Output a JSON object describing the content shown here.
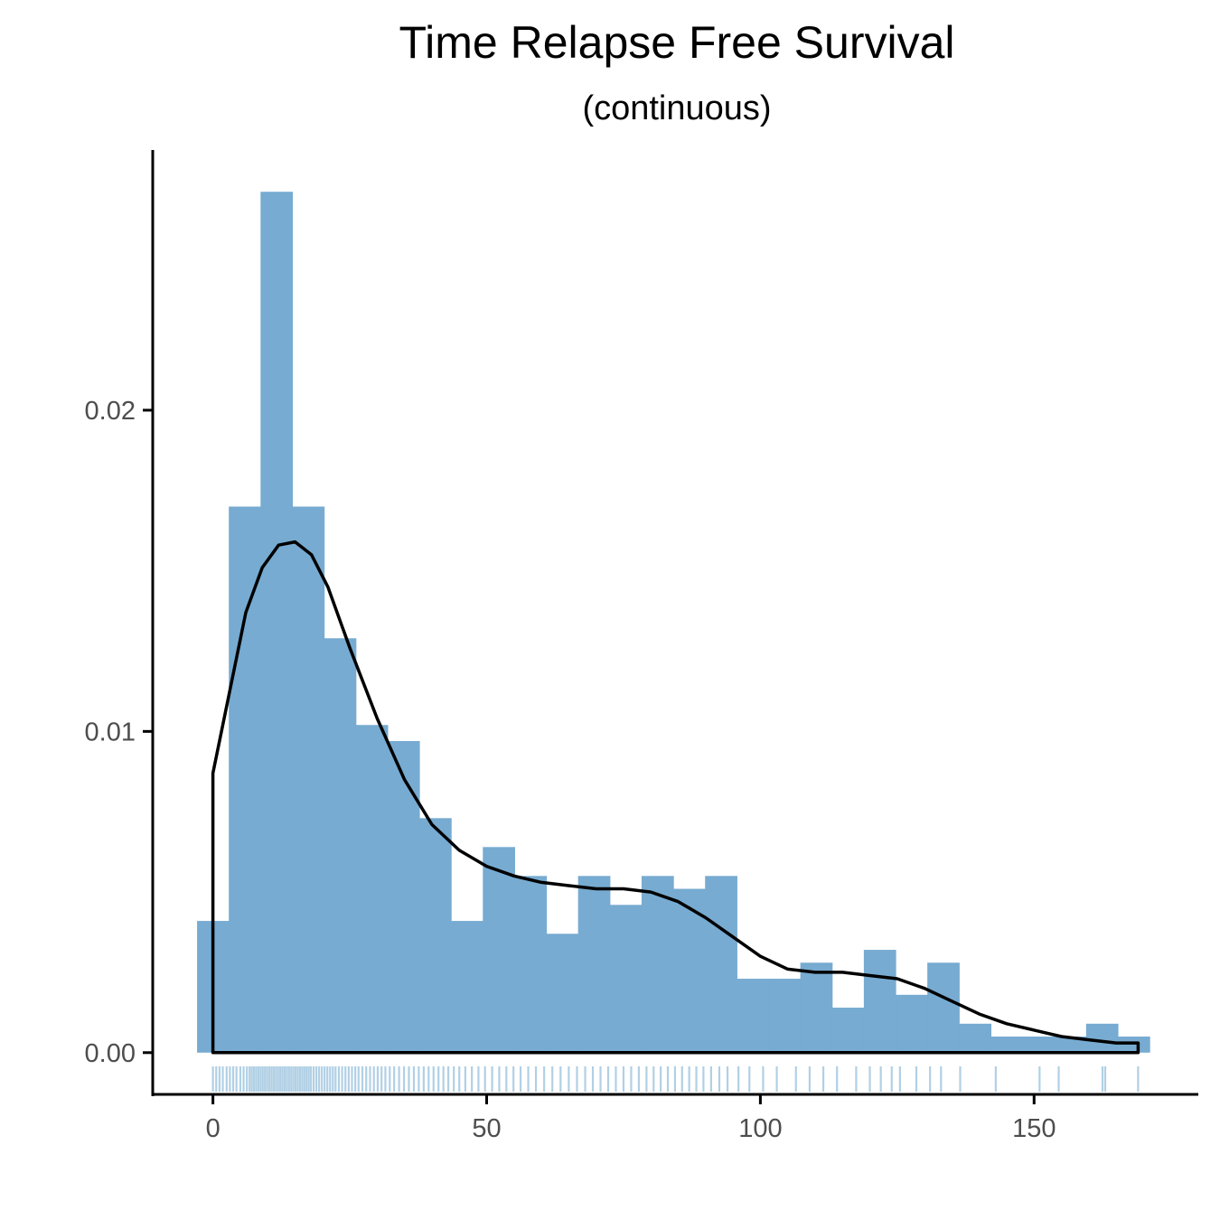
{
  "chart_data": {
    "type": "histogram",
    "title": "Time Relapse Free Survival",
    "subtitle": "(continuous)",
    "xlabel": "",
    "ylabel": "",
    "xlim": [
      -11,
      180
    ],
    "ylim": [
      -0.0013,
      0.0281
    ],
    "x_ticks": [
      0,
      50,
      100,
      150
    ],
    "y_ticks": [
      0,
      0.01,
      0.02
    ],
    "x_tick_labels": [
      "0",
      "50",
      "100",
      "150"
    ],
    "y_tick_labels": [
      "0.00",
      "0.01",
      "0.02"
    ],
    "bar_color": "#77abd1",
    "rug_color": "#1f77b4",
    "density_color": "#000000",
    "grid": false,
    "histogram": {
      "bin_width": 5.8,
      "bin_start": -2.9,
      "densities": [
        0.0041,
        0.017,
        0.0268,
        0.017,
        0.0129,
        0.0102,
        0.0097,
        0.0073,
        0.0041,
        0.0064,
        0.0055,
        0.0037,
        0.0055,
        0.0046,
        0.0055,
        0.0051,
        0.0055,
        0.0023,
        0.0023,
        0.0028,
        0.0014,
        0.0032,
        0.0018,
        0.0028,
        0.0009,
        0.0005,
        0.0005,
        0.0005,
        0.0009,
        0.0005
      ]
    },
    "density_curve": {
      "x": [
        0,
        0,
        3,
        6,
        9,
        12,
        15,
        18,
        21,
        25,
        30,
        35,
        40,
        45,
        50,
        55,
        60,
        65,
        70,
        75,
        80,
        85,
        90,
        95,
        100,
        105,
        110,
        115,
        120,
        125,
        130,
        135,
        140,
        145,
        150,
        155,
        160,
        165,
        169,
        169
      ],
      "y": [
        0,
        0.0087,
        0.0112,
        0.0137,
        0.0151,
        0.0158,
        0.0159,
        0.0155,
        0.0145,
        0.0126,
        0.0104,
        0.0085,
        0.0071,
        0.0063,
        0.0058,
        0.0055,
        0.0053,
        0.0052,
        0.0051,
        0.0051,
        0.005,
        0.0047,
        0.0042,
        0.0036,
        0.003,
        0.0026,
        0.0025,
        0.0025,
        0.0024,
        0.0023,
        0.002,
        0.0016,
        0.0012,
        0.0009,
        0.0007,
        0.0005,
        0.0004,
        0.0003,
        0.0003,
        0
      ]
    },
    "rug_x": [
      0,
      0.6,
      1.2,
      1.8,
      2.5,
      3.1,
      3.7,
      4.3,
      5.0,
      5.6,
      6.2,
      6.7,
      7.1,
      7.5,
      7.9,
      8.3,
      8.7,
      9.1,
      9.5,
      9.9,
      10.3,
      10.7,
      11.1,
      11.5,
      11.9,
      12.3,
      12.7,
      13.1,
      13.5,
      13.9,
      14.3,
      14.7,
      15.1,
      15.5,
      15.9,
      16.3,
      16.7,
      17.1,
      17.5,
      17.9,
      18.4,
      18.9,
      19.4,
      19.9,
      20.4,
      20.9,
      21.4,
      21.9,
      22.4,
      23.0,
      23.6,
      24.2,
      24.8,
      25.4,
      26.0,
      26.6,
      27.3,
      28.0,
      28.7,
      29.4,
      30.1,
      30.8,
      31.5,
      32.3,
      33.1,
      34.0,
      34.9,
      35.8,
      36.7,
      37.6,
      38.5,
      39.4,
      40.3,
      41.2,
      42.1,
      43.0,
      44.0,
      45.0,
      46.1,
      47.3,
      48.5,
      49.7,
      51.0,
      52.3,
      53.6,
      54.9,
      56.2,
      57.6,
      59.0,
      60.5,
      62.0,
      63.5,
      65.0,
      66.5,
      68.0,
      69.4,
      70.8,
      72.2,
      73.6,
      75.0,
      76.4,
      77.8,
      79.2,
      80.5,
      81.8,
      83.1,
      84.4,
      85.7,
      87.0,
      88.3,
      89.6,
      91.0,
      92.5,
      94.0,
      96.0,
      98.0,
      100.5,
      103.0,
      106.5,
      109.0,
      111.5,
      114.0,
      117.5,
      120.0,
      122.0,
      124.0,
      125.5,
      128.5,
      131.0,
      133.0,
      136.5,
      143.0,
      151.0,
      154.5,
      162.5,
      163.0,
      169.0
    ]
  }
}
